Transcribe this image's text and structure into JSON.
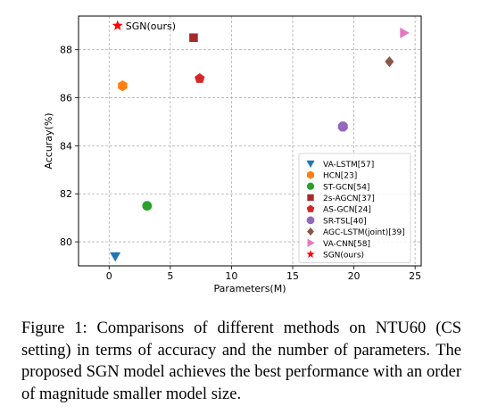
{
  "chart_data": {
    "type": "scatter",
    "xlabel": "Parameters(M)",
    "ylabel": "Accuray(%)",
    "xlim": [
      -2.5,
      25.5
    ],
    "ylim": [
      79.0,
      89.4
    ],
    "xticks": [
      0,
      5,
      10,
      15,
      20,
      25
    ],
    "yticks": [
      80,
      82,
      84,
      86,
      88
    ],
    "grid": true,
    "grid_style": "dashed",
    "legend_position": "lower-right",
    "series": [
      {
        "name": "VA-LSTM[57]",
        "marker": "triangle-down",
        "color": "#1f77b4",
        "x": 0.5,
        "y": 79.4
      },
      {
        "name": "HCN[23]",
        "marker": "hexagon",
        "color": "#ff7f0e",
        "x": 1.1,
        "y": 86.5
      },
      {
        "name": "ST-GCN[54]",
        "marker": "circle",
        "color": "#2ca02c",
        "x": 3.1,
        "y": 81.5
      },
      {
        "name": "2s-AGCN[37]",
        "marker": "square",
        "color": "#a52a2a",
        "x": 6.9,
        "y": 88.5
      },
      {
        "name": "AS-GCN[24]",
        "marker": "pentagon",
        "color": "#d62728",
        "x": 7.4,
        "y": 86.8
      },
      {
        "name": "SR-TSL[40]",
        "marker": "octagon",
        "color": "#9467bd",
        "x": 19.1,
        "y": 84.8
      },
      {
        "name": "AGC-LSTM(joint)[39]",
        "marker": "diamond",
        "color": "#8c564b",
        "x": 22.9,
        "y": 87.5
      },
      {
        "name": "VA-CNN[58]",
        "marker": "triangle-right",
        "color": "#e377c2",
        "x": 24.1,
        "y": 88.7
      },
      {
        "name": "SGN(ours)",
        "marker": "star",
        "color": "#ff0000",
        "x": 0.69,
        "y": 89.0
      }
    ],
    "annotations": [
      {
        "text": "SGN(ours)",
        "x": 0.69,
        "y": 89.0
      }
    ]
  },
  "caption": "Figure 1: Comparisons of different methods on NTU60 (CS setting) in terms of accuracy and the number of parameters. The proposed SGN model achieves the best performance with an order of magnitude smaller model size."
}
